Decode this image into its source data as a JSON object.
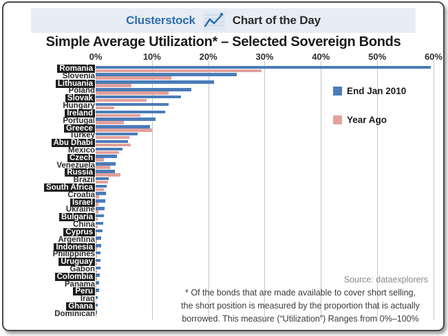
{
  "header": {
    "brand": "Clusterstock",
    "chart_of_day": "Chart of the Day",
    "icon": "line-chart-icon",
    "band_bg": "#e7edf4",
    "brand_color": "#2d6cb0"
  },
  "title": "Simple Average Utilization* – Selected Sovereign Bonds",
  "legend": [
    {
      "label": "End Jan 2010",
      "color": "#4a7cb8"
    },
    {
      "label": "Year Ago",
      "color": "#e2a19c"
    }
  ],
  "source": "Source: dataexplorers",
  "footnote_lines": [
    "* Of the bonds that are made available to cover short selling,",
    "the short position is measured by the proportion that is actually",
    "borrowed. This measure (“Utilization”) Ranges from 0%–100%"
  ],
  "chart_data": {
    "type": "bar",
    "orientation": "horizontal",
    "title": "Simple Average Utilization* – Selected Sovereign Bonds",
    "xlim": [
      0,
      60
    ],
    "x_ticks": [
      "0%",
      "10%",
      "20%",
      "30%",
      "40%",
      "50%",
      "60%"
    ],
    "grid": true,
    "legend_position": "upper-right",
    "categories": [
      "Romania",
      "Slovenia",
      "Lithuania",
      "Poland",
      "Slovak",
      "Hungary",
      "Ireland",
      "Portugal",
      "Greece",
      "Turkey",
      "Abu Dhabi",
      "Mexico",
      "Czech",
      "Venezuela",
      "Russia",
      "Brazil",
      "South Africa",
      "Croatia",
      "Israel",
      "Ukraine",
      "Bulgaria",
      "China",
      "Cyprus",
      "Argentina",
      "Indonesia",
      "Philippines",
      "Uruguay",
      "Gabon",
      "Colombia",
      "Panama",
      "Peru",
      "Iraq",
      "Ghana",
      "Dominican"
    ],
    "series": [
      {
        "name": "End Jan 2010",
        "color": "#4a7cb8",
        "values": [
          59.5,
          25,
          21,
          17,
          15.2,
          13,
          12.3,
          10.6,
          9.7,
          7.5,
          5.8,
          4.8,
          3.8,
          3.6,
          3.4,
          2.3,
          1.9,
          1.8,
          1.7,
          1.6,
          1.5,
          1.4,
          1.2,
          1.0,
          1.0,
          0.9,
          0.9,
          0.8,
          0.7,
          0.6,
          0.6,
          0.4,
          0.4,
          0.3
        ]
      },
      {
        "name": "Year Ago",
        "color": "#e2a19c",
        "values": [
          29.5,
          13.5,
          6.3,
          13,
          9,
          3.3,
          8,
          5,
          10,
          6,
          6.2,
          4.2,
          1.5,
          2.6,
          4.4,
          2.2,
          1.5,
          0.6,
          0.5,
          0.5,
          0.4,
          0.4,
          0.3,
          0.3,
          0.3,
          0.2,
          0.2,
          0.2,
          0.2,
          0.1,
          0.1,
          0.1,
          0.1,
          0.1
        ]
      }
    ]
  },
  "colors": {
    "bar_blue": "#4a7cb8",
    "bar_pink": "#e2a19c",
    "header_bg": "#e7edf4",
    "brand_blue": "#2d6cb0",
    "label_dark_bg": "#1d1d1d",
    "grid": "#c5c5c5",
    "source_text": "#8a8a8a",
    "footnote_text": "#3b3b3b"
  }
}
